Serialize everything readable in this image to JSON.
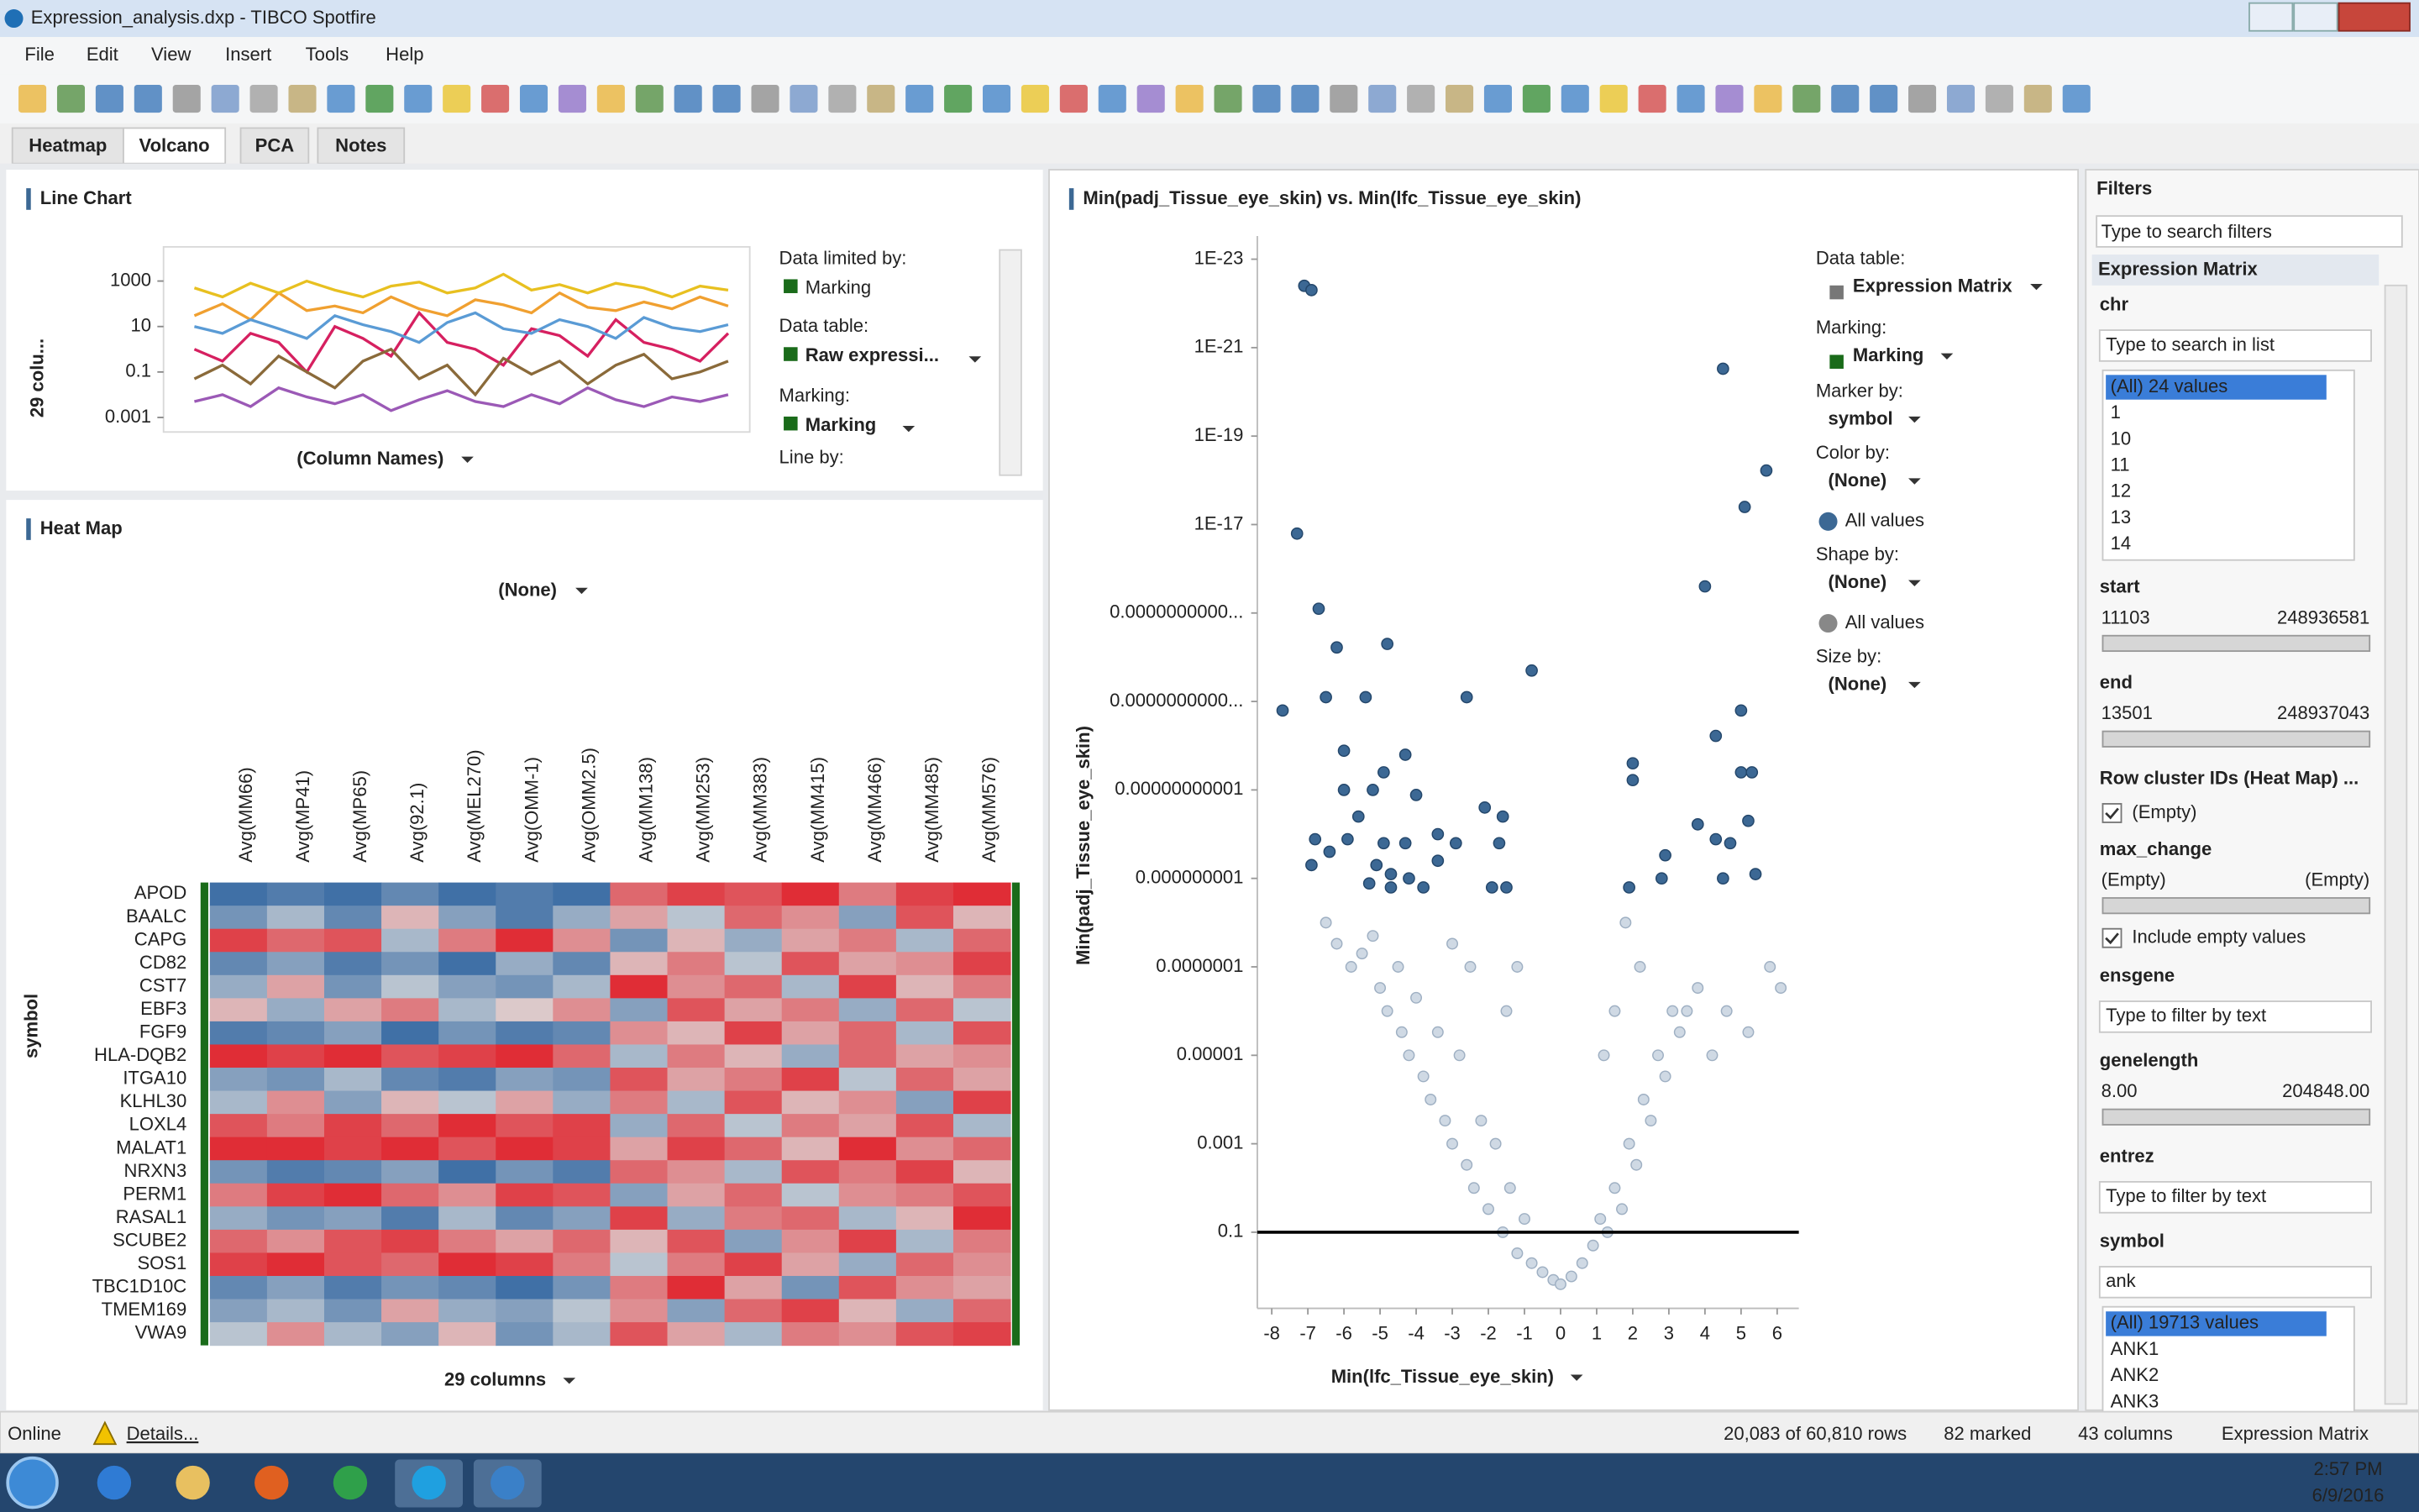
{
  "window": {
    "title": "Expression_analysis.dxp - TIBCO Spotfire"
  },
  "menu": [
    "File",
    "Edit",
    "View",
    "Insert",
    "Tools",
    "Help"
  ],
  "tabs": [
    "Heatmap",
    "Volcano",
    "PCA",
    "Notes"
  ],
  "line_chart": {
    "type": "line",
    "title": "Line Chart",
    "y_label": "29 colu...",
    "x_selector": "(Column Names)",
    "log_scale": true,
    "ylim": [
      0.0005,
      20000
    ],
    "yticks": [
      1000,
      10,
      0.1,
      0.001
    ],
    "series": [
      {
        "color": "#f0a030",
        "values": [
          30,
          100,
          20,
          300,
          50,
          80,
          40,
          200,
          60,
          30,
          150,
          90,
          40,
          300,
          70,
          50,
          120,
          60,
          200,
          80
        ]
      },
      {
        "color": "#d62060",
        "values": [
          1,
          0.3,
          5,
          2,
          0.1,
          10,
          3,
          0.5,
          40,
          2,
          1,
          0.2,
          8,
          4,
          0.5,
          20,
          2,
          1,
          0.3,
          5
        ]
      },
      {
        "color": "#5a9bd5",
        "values": [
          10,
          5,
          20,
          8,
          3,
          30,
          12,
          6,
          2,
          15,
          40,
          8,
          5,
          20,
          10,
          3,
          25,
          9,
          6,
          12
        ]
      },
      {
        "color": "#8a6a3a",
        "values": [
          0.05,
          0.2,
          0.03,
          0.5,
          0.1,
          0.02,
          0.3,
          1,
          0.05,
          0.2,
          0.01,
          0.4,
          0.08,
          0.3,
          0.03,
          0.2,
          0.6,
          0.05,
          0.1,
          0.3
        ]
      },
      {
        "color": "#e8c020",
        "values": [
          500,
          200,
          800,
          300,
          1000,
          400,
          200,
          600,
          900,
          300,
          500,
          2000,
          400,
          700,
          300,
          800,
          500,
          200,
          600,
          400
        ]
      },
      {
        "color": "#9b59b6",
        "values": [
          0.005,
          0.01,
          0.003,
          0.02,
          0.008,
          0.004,
          0.01,
          0.002,
          0.006,
          0.015,
          0.005,
          0.003,
          0.01,
          0.004,
          0.02,
          0.006,
          0.003,
          0.008,
          0.005,
          0.01
        ]
      }
    ],
    "panel": [
      {
        "label": "Data limited by:",
        "value": "Marking"
      },
      {
        "label": "Data table:",
        "value": "Raw expressi..."
      },
      {
        "label": "Marking:",
        "value": "Marking"
      },
      {
        "label": "Line by:"
      }
    ]
  },
  "heat_map": {
    "type": "heatmap",
    "title": "Heat Map",
    "top_selector": "(None)",
    "y_label": "symbol",
    "bottom_selector": "29 columns",
    "colors": {
      "low": "#2f64a0",
      "mid": "#dcdcdc",
      "high": "#e01a24"
    },
    "columns": [
      "Avg(MM66)",
      "Avg(MP41)",
      "Avg(MP65)",
      "Avg(92.1)",
      "Avg(MEL270)",
      "Avg(OMM-1)",
      "Avg(OMM2.5)",
      "Avg(MM138)",
      "Avg(MM253)",
      "Avg(MM383)",
      "Avg(MM415)",
      "Avg(MM466)",
      "Avg(MM485)",
      "Avg(MM576)"
    ],
    "rows": [
      "APOD",
      "BAALC",
      "CAPG",
      "CD82",
      "CST7",
      "EBF3",
      "FGF9",
      "HLA-DQB2",
      "ITGA10",
      "KLHL30",
      "LOXL4",
      "MALAT1",
      "NRXN3",
      "PERM1",
      "RASAL1",
      "SCUBE2",
      "SOS1",
      "TBC1D10C",
      "TMEM169",
      "VWA9"
    ],
    "values": [
      [
        -0.9,
        -0.8,
        -0.9,
        -0.7,
        -0.9,
        -0.8,
        -0.9,
        0.6,
        0.8,
        0.7,
        0.9,
        0.5,
        0.8,
        0.9
      ],
      [
        -0.6,
        -0.3,
        -0.7,
        0.2,
        -0.5,
        -0.8,
        -0.4,
        0.3,
        -0.2,
        0.6,
        0.4,
        -0.5,
        0.7,
        0.2
      ],
      [
        0.8,
        0.6,
        0.7,
        -0.3,
        0.5,
        0.9,
        0.4,
        -0.6,
        0.2,
        -0.4,
        0.3,
        0.5,
        -0.3,
        0.6
      ],
      [
        -0.7,
        -0.5,
        -0.8,
        -0.6,
        -0.9,
        -0.4,
        -0.7,
        0.2,
        0.5,
        -0.2,
        0.7,
        0.3,
        0.4,
        0.8
      ],
      [
        -0.4,
        0.3,
        -0.6,
        -0.2,
        -0.5,
        -0.6,
        -0.3,
        0.9,
        0.4,
        0.6,
        -0.3,
        0.8,
        0.2,
        0.5
      ],
      [
        0.2,
        -0.4,
        0.3,
        0.5,
        -0.3,
        0.1,
        0.4,
        -0.5,
        0.7,
        0.3,
        0.5,
        -0.4,
        0.6,
        -0.2
      ],
      [
        -0.8,
        -0.7,
        -0.5,
        -0.9,
        -0.6,
        -0.8,
        -0.7,
        0.4,
        0.2,
        0.8,
        0.3,
        0.6,
        -0.3,
        0.7
      ],
      [
        0.9,
        0.8,
        0.9,
        0.7,
        0.8,
        0.9,
        0.6,
        -0.3,
        0.5,
        0.2,
        -0.4,
        0.6,
        0.3,
        0.4
      ],
      [
        -0.5,
        -0.6,
        -0.3,
        -0.7,
        -0.8,
        -0.5,
        -0.6,
        0.7,
        0.3,
        0.5,
        0.8,
        -0.2,
        0.6,
        0.3
      ],
      [
        -0.3,
        0.4,
        -0.5,
        0.2,
        -0.2,
        0.3,
        -0.4,
        0.5,
        -0.3,
        0.7,
        0.2,
        0.4,
        -0.5,
        0.8
      ],
      [
        0.7,
        0.5,
        0.8,
        0.6,
        0.9,
        0.7,
        0.8,
        -0.4,
        0.6,
        -0.2,
        0.5,
        0.3,
        0.7,
        -0.3
      ],
      [
        0.9,
        0.9,
        0.8,
        0.9,
        0.7,
        0.9,
        0.8,
        0.3,
        0.8,
        0.6,
        0.2,
        0.9,
        0.4,
        0.6
      ],
      [
        -0.6,
        -0.8,
        -0.7,
        -0.5,
        -0.9,
        -0.6,
        -0.8,
        0.6,
        0.4,
        -0.3,
        0.7,
        0.5,
        0.8,
        0.2
      ],
      [
        0.5,
        0.8,
        0.9,
        0.6,
        0.4,
        0.8,
        0.7,
        -0.5,
        0.3,
        0.6,
        -0.2,
        0.4,
        0.5,
        0.7
      ],
      [
        -0.4,
        -0.6,
        -0.5,
        -0.8,
        -0.3,
        -0.7,
        -0.5,
        0.8,
        -0.4,
        0.5,
        0.6,
        -0.3,
        0.2,
        0.9
      ],
      [
        0.6,
        0.4,
        0.7,
        0.8,
        0.5,
        0.3,
        0.6,
        0.2,
        0.7,
        -0.5,
        0.4,
        0.8,
        -0.3,
        0.5
      ],
      [
        0.8,
        0.9,
        0.7,
        0.6,
        0.9,
        0.8,
        0.5,
        -0.2,
        0.5,
        0.8,
        0.3,
        -0.4,
        0.6,
        0.4
      ],
      [
        -0.7,
        -0.5,
        -0.8,
        -0.6,
        -0.7,
        -0.9,
        -0.6,
        0.5,
        0.9,
        0.3,
        -0.6,
        0.7,
        0.4,
        0.3
      ],
      [
        -0.5,
        -0.3,
        -0.6,
        0.3,
        -0.4,
        -0.5,
        -0.2,
        0.4,
        -0.5,
        0.6,
        0.8,
        0.2,
        -0.4,
        0.6
      ],
      [
        -0.2,
        0.4,
        -0.3,
        -0.5,
        0.2,
        -0.6,
        -0.3,
        0.7,
        0.3,
        -0.3,
        0.5,
        0.4,
        0.7,
        0.8
      ]
    ]
  },
  "volcano": {
    "type": "scatter",
    "title": "Min(padj_Tissue_eye_skin) vs. Min(lfc_Tissue_eye_skin)",
    "x_label": "Min(lfc_Tissue_eye_skin)",
    "y_label": "Min(padj_Tissue_eye_skin)",
    "log_y": true,
    "xlim": [
      -8.4,
      6.6
    ],
    "xticks": [
      -8,
      -7,
      -6,
      -5,
      -4,
      -3,
      -2,
      -1,
      0,
      1,
      2,
      3,
      4,
      5,
      6
    ],
    "ylim": [
      3,
      3e-24
    ],
    "yticks": [
      {
        "value": 1e-23,
        "label": "1E-23"
      },
      {
        "value": 1e-21,
        "label": "1E-21"
      },
      {
        "value": 1e-19,
        "label": "1E-19"
      },
      {
        "value": 1e-17,
        "label": "1E-17"
      },
      {
        "value": 1e-15,
        "label": "0.0000000000..."
      },
      {
        "value": 1e-13,
        "label": "0.0000000000..."
      },
      {
        "value": 1e-11,
        "label": "0.00000000001"
      },
      {
        "value": 1e-09,
        "label": "0.000000001"
      },
      {
        "value": 1e-07,
        "label": "0.0000001"
      },
      1e-05,
      0.001,
      0.1
    ],
    "hline": 0.1,
    "hline_color": "#000000",
    "series": [
      {
        "color": "#cfd9e4",
        "stroke": "#9fb0c3",
        "x": [
          -6.5,
          -6.2,
          -5.8,
          -5.5,
          -5.2,
          -5,
          -4.8,
          -4.5,
          -4.4,
          -4.2,
          -4,
          -3.8,
          -3.6,
          -3.4,
          -3.2,
          -3,
          -2.8,
          -2.6,
          -2.4,
          -2.2,
          -2,
          -1.8,
          -1.6,
          -1.4,
          -1.2,
          -1,
          -0.8,
          -0.5,
          -0.2,
          0,
          -3,
          -2.5,
          -1.5,
          -1.2,
          0.3,
          0.6,
          0.9,
          1.1,
          1.3,
          1.5,
          1.7,
          1.9,
          2.1,
          2.3,
          2.5,
          2.7,
          2.9,
          3.1,
          3.3,
          3.5,
          3.8,
          4.2,
          4.6,
          5.2,
          5.8,
          6.1,
          1.8,
          2.2,
          1.5,
          1.2
        ],
        "values": [
          1e-08,
          3e-08,
          1e-07,
          5e-08,
          2e-08,
          3e-07,
          1e-06,
          1e-07,
          3e-06,
          1e-05,
          5e-07,
          3e-05,
          0.0001,
          3e-06,
          0.0003,
          0.001,
          1e-05,
          0.003,
          0.01,
          0.0003,
          0.03,
          0.001,
          0.1,
          0.01,
          0.3,
          0.05,
          0.5,
          0.8,
          1.2,
          1.5,
          3e-08,
          1e-07,
          1e-06,
          1e-07,
          1,
          0.5,
          0.2,
          0.05,
          0.1,
          0.01,
          0.03,
          0.001,
          0.003,
          0.0001,
          0.0003,
          1e-05,
          3e-05,
          1e-06,
          3e-06,
          1e-06,
          3e-07,
          1e-05,
          1e-06,
          3e-06,
          1e-07,
          3e-07,
          1e-08,
          1e-07,
          1e-06,
          1e-05
        ]
      },
      {
        "color": "#3c6894",
        "stroke": "#24476b",
        "x": [
          -7.1,
          -6.9,
          -7.3,
          -6.7,
          -7.7,
          -6.2,
          -4.8,
          -6.5,
          -5.4,
          -2.6,
          -0.8,
          -6,
          -4.3,
          -4.9,
          -6,
          -5.6,
          -5.2,
          -4,
          -2.1,
          -1.6,
          -6.8,
          -6.4,
          -5.9,
          -4.9,
          -4.3,
          -3.4,
          -2.9,
          -1.7,
          -5.1,
          -6.9,
          -4.7,
          -4.2,
          -3.4,
          -5.3,
          -4.7,
          -3.8,
          -1.9,
          -1.5,
          4.5,
          5.7,
          5.1,
          4,
          5,
          4.3,
          2,
          2,
          5,
          5.3,
          3.8,
          5.2,
          4.3,
          4.7,
          2.9,
          2.8,
          4.5,
          5.4,
          1.9
        ],
        "values": [
          4e-23,
          5e-23,
          1.6e-17,
          8e-16,
          1.6e-13,
          6e-15,
          5e-15,
          8e-14,
          8e-14,
          8e-14,
          2e-14,
          1.3e-12,
          1.6e-12,
          4e-12,
          1e-11,
          4e-11,
          1e-11,
          1.3e-11,
          2.5e-11,
          4e-11,
          1.3e-10,
          2.5e-10,
          1.3e-10,
          1.6e-10,
          1.6e-10,
          1e-10,
          1.6e-10,
          1.6e-10,
          5e-10,
          5e-10,
          8e-10,
          1e-09,
          4e-10,
          1.3e-09,
          1.6e-09,
          1.6e-09,
          1.6e-09,
          1.6e-09,
          3e-21,
          6e-19,
          4e-18,
          2.5e-16,
          1.6e-13,
          6e-13,
          2.5e-12,
          6e-12,
          4e-12,
          4e-12,
          6e-11,
          5e-11,
          1.3e-10,
          1.6e-10,
          3e-10,
          1e-09,
          1e-09,
          8e-10,
          1.6e-09
        ]
      }
    ],
    "panel": [
      {
        "label": "Data table:",
        "value": "Expression Matrix"
      },
      {
        "label": "Marking:",
        "value": "Marking"
      },
      {
        "label": "Marker by:",
        "value": "symbol"
      },
      {
        "label": "Color by:",
        "value": "(None)",
        "legend": "All values"
      },
      {
        "label": "Shape by:",
        "value": "(None)",
        "legend": "All values"
      },
      {
        "label": "Size by:",
        "value": "(None)"
      }
    ]
  },
  "filters": {
    "title": "Filters",
    "search_placeholder": "Type to search filters",
    "group": "Expression Matrix",
    "items": [
      {
        "name": "chr",
        "placeholder": "Type to search in list",
        "list": [
          "(All) 24 values",
          "1",
          "10",
          "11",
          "12",
          "13",
          "14"
        ]
      },
      {
        "name": "start",
        "min": "11103",
        "max": "248936581"
      },
      {
        "name": "end",
        "min": "13501",
        "max": "248937043"
      },
      {
        "name": "Row cluster IDs (Heat Map) ...",
        "checkbox": "(Empty)"
      },
      {
        "name": "max_change",
        "min": "(Empty)",
        "max": "(Empty)",
        "checkbox": "Include empty values"
      },
      {
        "name": "ensgene",
        "placeholder": "Type to filter by text"
      },
      {
        "name": "genelength",
        "min": "8.00",
        "max": "204848.00"
      },
      {
        "name": "entrez",
        "placeholder": "Type to filter by text"
      },
      {
        "name": "symbol",
        "input": "ank",
        "list": [
          "(All) 19713 values",
          "ANK1",
          "ANK2",
          "ANK3"
        ]
      }
    ]
  },
  "status": {
    "state": "Online",
    "details": "Details...",
    "rows": "20,083 of 60,810 rows",
    "marked": "82 marked",
    "columns": "43 columns",
    "table": "Expression Matrix"
  },
  "taskbar": {
    "time": "2:57 PM",
    "date": "6/9/2016"
  }
}
